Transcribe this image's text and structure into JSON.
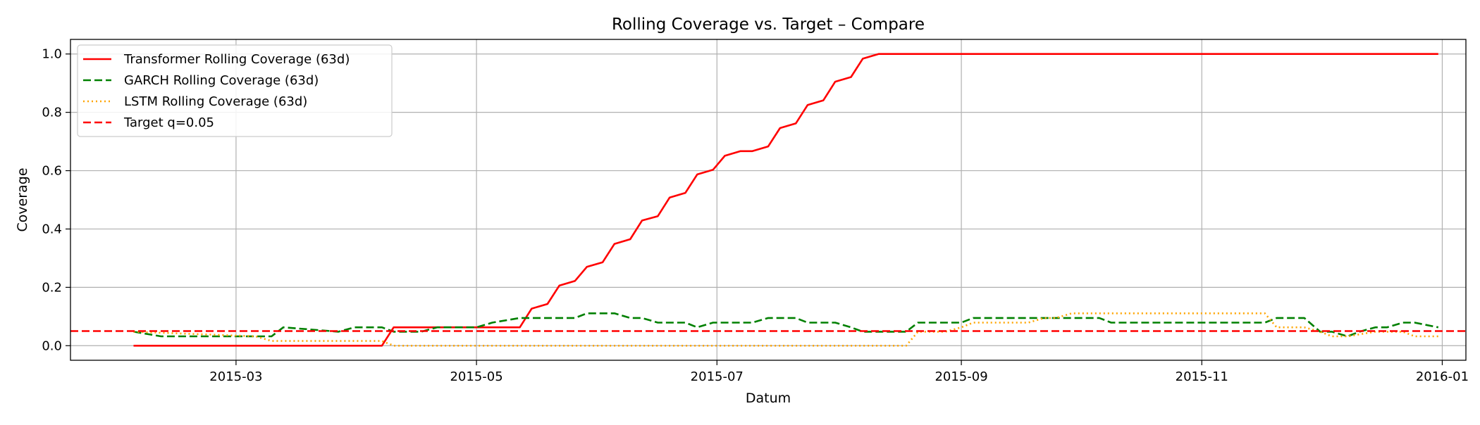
{
  "chart_data": {
    "type": "line",
    "title": "Rolling Coverage vs. Target – Compare",
    "xlabel": "Datum",
    "ylabel": "Coverage",
    "x_tick_labels": [
      "2015-03",
      "2015-05",
      "2015-07",
      "2015-09",
      "2015-11",
      "2016-01"
    ],
    "y_tick_labels": [
      "0.0",
      "0.2",
      "0.4",
      "0.6",
      "0.8",
      "1.0"
    ],
    "xlim": [
      "2015-01-18",
      "2016-01-07"
    ],
    "ylim": [
      -0.05,
      1.05
    ],
    "grid": true,
    "legend_position": "top-left",
    "series": [
      {
        "name": "Transformer Rolling Coverage (63d)",
        "color": "#ff0000",
        "style": "solid",
        "x": [
          "2015-02-03",
          "2015-04-07",
          "2015-04-10",
          "2015-05-08",
          "2015-05-12",
          "2015-05-15",
          "2015-05-19",
          "2015-05-22",
          "2015-05-26",
          "2015-05-29",
          "2015-06-02",
          "2015-06-05",
          "2015-06-09",
          "2015-06-12",
          "2015-06-16",
          "2015-06-19",
          "2015-06-23",
          "2015-06-26",
          "2015-06-30",
          "2015-07-03",
          "2015-07-07",
          "2015-07-10",
          "2015-07-14",
          "2015-07-17",
          "2015-07-21",
          "2015-07-24",
          "2015-07-28",
          "2015-07-31",
          "2015-08-04",
          "2015-08-07",
          "2015-08-11",
          "2015-12-31"
        ],
        "y": [
          0.0,
          0.0,
          0.063,
          0.063,
          0.063,
          0.127,
          0.143,
          0.206,
          0.222,
          0.27,
          0.286,
          0.349,
          0.365,
          0.429,
          0.444,
          0.508,
          0.524,
          0.587,
          0.603,
          0.651,
          0.667,
          0.667,
          0.683,
          0.746,
          0.762,
          0.825,
          0.841,
          0.905,
          0.921,
          0.984,
          1.0,
          1.0
        ]
      },
      {
        "name": "GARCH Rolling Coverage (63d)",
        "color": "#008000",
        "style": "dashed",
        "x": [
          "2015-02-03",
          "2015-02-10",
          "2015-03-10",
          "2015-03-13",
          "2015-03-27",
          "2015-03-31",
          "2015-04-07",
          "2015-04-10",
          "2015-04-17",
          "2015-04-21",
          "2015-05-01",
          "2015-05-05",
          "2015-05-12",
          "2015-05-15",
          "2015-05-26",
          "2015-05-29",
          "2015-06-05",
          "2015-06-09",
          "2015-06-12",
          "2015-06-16",
          "2015-06-23",
          "2015-06-26",
          "2015-06-30",
          "2015-07-03",
          "2015-07-10",
          "2015-07-14",
          "2015-07-21",
          "2015-07-24",
          "2015-07-28",
          "2015-07-31",
          "2015-08-04",
          "2015-08-07",
          "2015-08-11",
          "2015-08-18",
          "2015-08-21",
          "2015-09-01",
          "2015-09-04",
          "2015-10-06",
          "2015-10-09",
          "2015-11-17",
          "2015-11-20",
          "2015-11-27",
          "2015-12-01",
          "2015-12-04",
          "2015-12-08",
          "2015-12-11",
          "2015-12-15",
          "2015-12-18",
          "2015-12-22",
          "2015-12-25",
          "2015-12-31"
        ],
        "y": [
          0.048,
          0.032,
          0.032,
          0.063,
          0.048,
          0.063,
          0.063,
          0.048,
          0.048,
          0.063,
          0.063,
          0.079,
          0.095,
          0.095,
          0.095,
          0.111,
          0.111,
          0.095,
          0.095,
          0.079,
          0.079,
          0.063,
          0.079,
          0.079,
          0.079,
          0.095,
          0.095,
          0.079,
          0.079,
          0.079,
          0.063,
          0.048,
          0.048,
          0.048,
          0.079,
          0.079,
          0.095,
          0.095,
          0.079,
          0.079,
          0.095,
          0.095,
          0.048,
          0.048,
          0.032,
          0.048,
          0.063,
          0.063,
          0.079,
          0.079,
          0.063
        ]
      },
      {
        "name": "LSTM Rolling Coverage (63d)",
        "color": "#ffa500",
        "style": "dotted",
        "x": [
          "2015-02-03",
          "2015-03-06",
          "2015-03-10",
          "2015-04-07",
          "2015-04-10",
          "2015-08-18",
          "2015-08-21",
          "2015-08-28",
          "2015-09-01",
          "2015-09-04",
          "2015-09-18",
          "2015-09-22",
          "2015-09-25",
          "2015-09-29",
          "2015-11-17",
          "2015-11-20",
          "2015-11-27",
          "2015-12-01",
          "2015-12-04",
          "2015-12-08",
          "2015-12-15",
          "2015-12-18",
          "2015-12-22",
          "2015-12-25",
          "2015-12-31"
        ],
        "y": [
          0.048,
          0.032,
          0.016,
          0.016,
          0.0,
          0.0,
          0.048,
          0.048,
          0.063,
          0.079,
          0.079,
          0.095,
          0.095,
          0.111,
          0.111,
          0.063,
          0.063,
          0.048,
          0.032,
          0.032,
          0.048,
          0.048,
          0.048,
          0.032,
          0.032
        ]
      },
      {
        "name": "Target q=0.05",
        "color": "#ff0000",
        "style": "dashed",
        "x": [
          "2015-01-18",
          "2016-01-07"
        ],
        "y": [
          0.05,
          0.05
        ]
      }
    ]
  }
}
